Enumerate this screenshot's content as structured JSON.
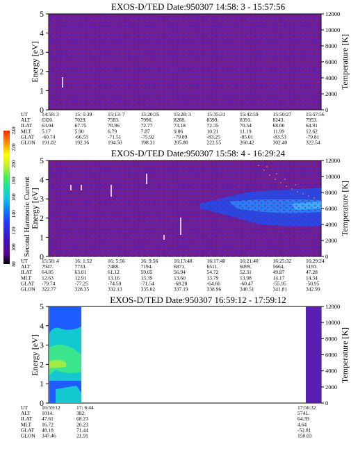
{
  "panels": [
    {
      "title": "EXOS-D/TED   Date:950307  14:58: 3 - 15:57:56",
      "ylabel_left": "Energy [eV]",
      "ylabel_right": "Temperature [K]",
      "yticks_left": [
        "0",
        "1",
        "2",
        "3",
        "4",
        "5"
      ],
      "yticks_right": [
        "0",
        "2000",
        "4000",
        "6000",
        "8000",
        "10000",
        "12000"
      ],
      "table_labels": [
        "UT",
        "ALT",
        "ILAT",
        "MLT",
        "GLAT",
        "GLON"
      ],
      "table": [
        [
          "14:58: 3",
          "6320.",
          "63.04",
          "5.17",
          "-60.74",
          "191.02"
        ],
        [
          "15: 5:39",
          "7029.",
          "67.75",
          "5.90",
          "-66.55",
          "192.36"
        ],
        [
          "15:13: 7",
          "7583.",
          "70.96",
          "6.79",
          "-71.51",
          "194.50"
        ],
        [
          "15:20:35",
          "7996.",
          "72.77",
          "7.87",
          "-75.92",
          "198.31"
        ],
        [
          "15:28: 3",
          "8268.",
          "73.18",
          "9.06",
          "-79.89",
          "205.80"
        ],
        [
          "15:35:31",
          "8399.",
          "72.35",
          "10.21",
          "-83.25",
          "222.55"
        ],
        [
          "15:42:59",
          "8391.",
          "70.54",
          "11.19",
          "-85.01",
          "260.42"
        ],
        [
          "15:50:27",
          "8243.",
          "68.00",
          "11.99",
          "-83.53",
          "302.40"
        ],
        [
          "15:57:56",
          "7953.",
          "64.91",
          "12.62",
          "-79.81",
          "322.54"
        ]
      ]
    },
    {
      "title": "EXOS-D/TED   Date:950307  15:58: 4 - 16:29:24",
      "ylabel_left": "Energy [eV]",
      "ylabel_right": "Temperature [K]",
      "yticks_left": [
        "0",
        "1",
        "2",
        "3",
        "4",
        "5"
      ],
      "yticks_right": [
        "0",
        "2000",
        "4000",
        "6000",
        "8000",
        "10000",
        "12000"
      ],
      "table_labels": [
        "UT",
        "ALT",
        "ILAT",
        "MLT",
        "GLAT",
        "GLON"
      ],
      "table": [
        [
          "15:58: 4",
          "7947.",
          "64.85",
          "12.63",
          "-79.74",
          "322.77"
        ],
        [
          "16: 1:52",
          "7733.",
          "63.01",
          "12.91",
          "-77.25",
          "328.35"
        ],
        [
          "16: 5:56",
          "7488.",
          "61.12",
          "13.16",
          "-74.59",
          "332.13"
        ],
        [
          "16: 9:56",
          "7194.",
          "59.05",
          "13.39",
          "-71.54",
          "335.02"
        ],
        [
          "16:13:48",
          "6871.",
          "56.94",
          "13.60",
          "-68.28",
          "337.19"
        ],
        [
          "16:17:40",
          "6511.",
          "54.72",
          "13.79",
          "-64.66",
          "338.96"
        ],
        [
          "16:21:40",
          "6099.",
          "52.31",
          "13.98",
          "-60.47",
          "340.51"
        ],
        [
          "16:25:32",
          "5664.",
          "49.87",
          "14.17",
          "-55.95",
          "341.81"
        ],
        [
          "16:29:24",
          "5193.",
          "47.28",
          "14.34",
          "-50.95",
          "342.99"
        ]
      ]
    },
    {
      "title": "EXOS-D/TED   Date:950307  16:59:12 - 17:59:12",
      "ylabel_left": "Energy [eV]",
      "ylabel_right": "Temperature [K]",
      "yticks_left": [
        "0",
        "1",
        "2",
        "3",
        "4",
        "5"
      ],
      "yticks_right": [
        "0",
        "2000",
        "4000",
        "6000",
        "8000",
        "10000",
        "12000"
      ],
      "table_labels": [
        "UT",
        "ALT",
        "ILAT",
        "MLT",
        "GLAT",
        "GLON"
      ],
      "table": [
        [
          "16:59:12",
          "1014.",
          "47.61",
          "16.72",
          "48.18",
          "347.46"
        ],
        [
          "17: 6:44",
          "382.",
          "68.23",
          "20.23",
          "71.44",
          "21.91"
        ],
        [
          "17:56:32",
          "5741.",
          "64.39",
          "4.64",
          "-52.81",
          "150.03"
        ]
      ]
    }
  ],
  "colorbar": {
    "label": "Second Harmonic Current",
    "ticks": [
      "80",
      "100",
      "120",
      "140",
      "160",
      "180",
      "200",
      "220",
      "240"
    ],
    "colors": [
      "#000000",
      "#5a0096",
      "#3a14c8",
      "#1e3cff",
      "#0a8cff",
      "#10c8e6",
      "#14e6a0",
      "#50f050",
      "#c8f028",
      "#ffff00",
      "#ff9600",
      "#ff2800"
    ]
  },
  "colors": {
    "background_fill": "#5a1fb0",
    "speckle": "#a02050",
    "band_blue": "#1e5cff",
    "cyan": "#14d2c8",
    "green": "#3ce68c"
  }
}
